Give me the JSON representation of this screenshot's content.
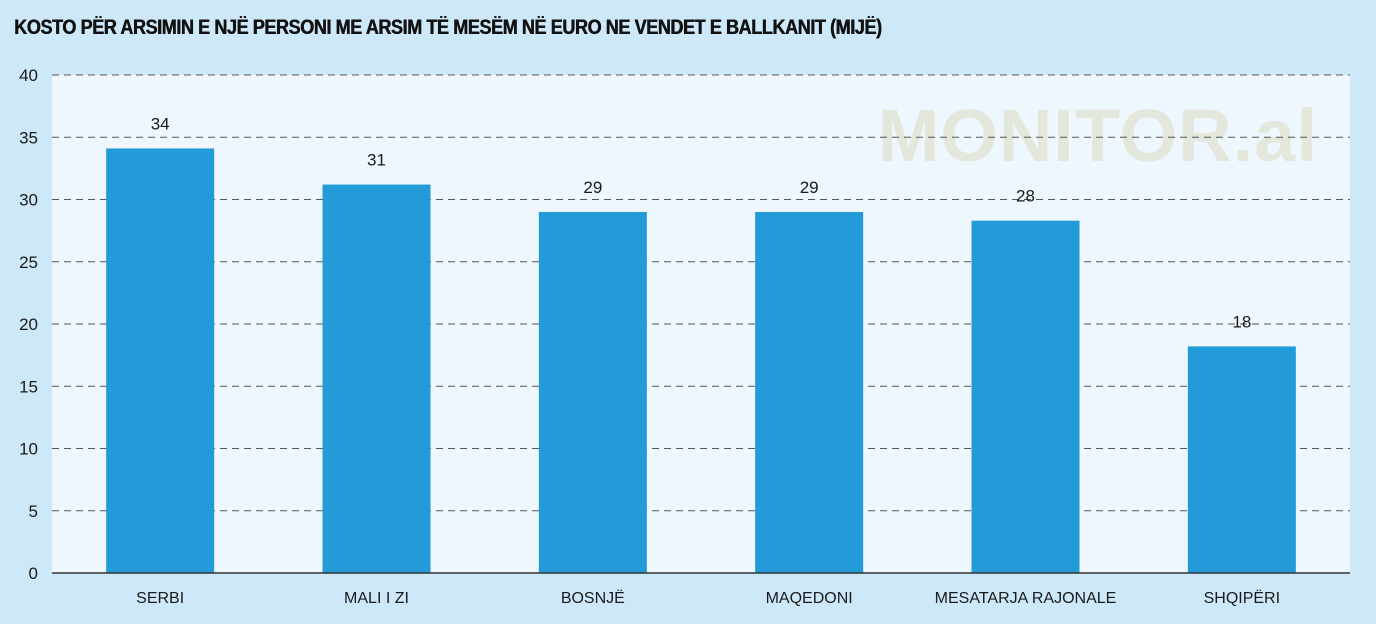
{
  "chart_data": {
    "type": "bar",
    "title": "KOSTO PËR ARSIMIN E NJË PERSONI ME ARSIM TË MESËM NË EURO NE VENDET E BALLKANIT (MIJË)",
    "categories": [
      "SERBI",
      "MALI I ZI",
      "BOSNJË",
      "MAQEDONI",
      "MESATARJA RAJONALE",
      "SHQIPËRI"
    ],
    "values": [
      34.1,
      31.2,
      29,
      29,
      28.3,
      18.2
    ],
    "value_labels": [
      "34",
      "31",
      "29",
      "29",
      "28",
      "18"
    ],
    "ylim": [
      0,
      40
    ],
    "yticks": [
      "0",
      "5",
      "10",
      "15",
      "20",
      "25",
      "30",
      "35",
      "40"
    ],
    "xlabel": "",
    "ylabel": "",
    "grid": true,
    "bar_color": "#229bd8",
    "plot_background": "#eef7fd",
    "page_background": "#cde9f9"
  },
  "watermark": "MONITOR.al"
}
